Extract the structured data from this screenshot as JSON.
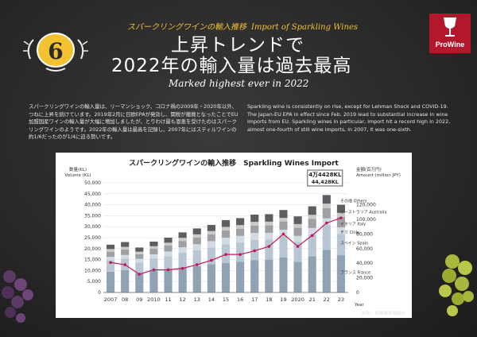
{
  "header": {
    "subtitle_ja": "スパークリングワインの輸入推移",
    "subtitle_en": "Import of Sparkling Wines",
    "title_line1": "上昇トレンドで",
    "title_line2": "2022年の輸入量は過去最高",
    "tagline": "Marked highest ever in 2022",
    "badge_number": "6",
    "logo_text": "ProWine"
  },
  "body_text": {
    "ja": "スパークリングワインの輸入量は、リーマンショック、コロナ禍の2009年・2020年以外、つねに上昇を続けています。2019年2月に日欧EPAが発効し、関税が撤廃となったことでEU加盟国産ワインの輸入量が大幅に増加しましたが、とりわけ最も恩恵を受けたのはスパークリングワインのようです。2022年の輸入量は最高を記録し、2007年にはスティルワインの約1/6だったのが1/4に迫る勢いです。",
    "en": "Sparkling wine is consistently on rise, except for Lehman Shock and COVID-19. The Japan-EU EPA in effect since Feb. 2019 lead to substantial increase in wine imports from EU. Sparkling wines in particular, import hit a record high in 2022, almost one-fourth of still wine imports, in 2007, it was one-sixth."
  },
  "source": "出所：財務省貿易統計",
  "colors": {
    "France": "#8fa3b5",
    "Spain": "#b7c6d2",
    "Chile": "#d3dbe2",
    "Italy": "#9ea0a3",
    "Australia": "#c9cacb",
    "Others": "#5c5e61",
    "amount_line": "#c2185b"
  },
  "chart_data": {
    "type": "bar",
    "title": "スパークリングワインの輸入推移　Sparkling Wines Import",
    "categories": [
      "2007",
      "08",
      "09",
      "2010",
      "11",
      "12",
      "13",
      "14",
      "15",
      "16",
      "17",
      "18",
      "19",
      "2020",
      "21",
      "22",
      "23"
    ],
    "x_axis_label": "Year",
    "ylabel_left_ja": "数量(KL)",
    "ylabel_left_en": "Volume (KL)",
    "ylim_left": [
      0,
      50000
    ],
    "yticks_left": [
      "0",
      "5,000",
      "10,000",
      "15,000",
      "20,000",
      "25,000",
      "30,000",
      "35,000",
      "40,000",
      "45,000",
      "50,000"
    ],
    "ylabel_right_ja": "金額(百万円)",
    "ylabel_right_en": "Amount (million JPY)",
    "ylim_right": [
      0,
      150000
    ],
    "yticks_right": [
      "0",
      "20,000",
      "40,000",
      "60,000",
      "80,000",
      "100,000",
      "120,000"
    ],
    "stacked": true,
    "series": [
      {
        "name": "フランス France",
        "key": "France",
        "values": [
          9500,
          10200,
          8800,
          9900,
          10500,
          11500,
          12000,
          12900,
          13500,
          14000,
          14800,
          15000,
          16000,
          14000,
          16500,
          19500,
          17000
        ]
      },
      {
        "name": "スペイン Spain",
        "key": "Spain",
        "values": [
          5200,
          5300,
          4900,
          5600,
          6000,
          6600,
          7300,
          7600,
          8400,
          8800,
          9200,
          9200,
          9900,
          9000,
          10000,
          11300,
          9700
        ]
      },
      {
        "name": "チリ Chile",
        "key": "Chile",
        "values": [
          1500,
          1600,
          1600,
          1900,
          2200,
          2500,
          2700,
          2900,
          3100,
          3000,
          3100,
          3000,
          2700,
          2800,
          2900,
          3000,
          3000
        ]
      },
      {
        "name": "イタリア Italy",
        "key": "Italy",
        "values": [
          2400,
          2500,
          2200,
          2500,
          2700,
          2900,
          3000,
          3100,
          3300,
          3300,
          3400,
          3400,
          3800,
          3700,
          4200,
          4700,
          4700
        ]
      },
      {
        "name": "オーストラリア Australia",
        "key": "Australia",
        "values": [
          1200,
          1200,
          1100,
          1200,
          1300,
          1400,
          1500,
          1500,
          1600,
          1600,
          1700,
          1700,
          1600,
          1700,
          1800,
          2000,
          1900
        ]
      },
      {
        "name": "その他 Others",
        "key": "Others",
        "values": [
          2000,
          2200,
          1900,
          2100,
          2300,
          2500,
          2700,
          2800,
          3100,
          3200,
          3300,
          3400,
          3600,
          3500,
          3900,
          3928,
          3700
        ]
      }
    ],
    "line_series": {
      "name": "Amount (million JPY)",
      "axis": "right",
      "values": [
        41000,
        38000,
        25000,
        31000,
        31000,
        33000,
        38000,
        44000,
        52000,
        52000,
        57000,
        63000,
        80000,
        63000,
        78000,
        95000,
        102000
      ]
    },
    "annotation": {
      "text_ja": "4万4428",
      "unit": "KL",
      "text_en": "44,428",
      "unit_en": "KL",
      "category": "22"
    }
  }
}
